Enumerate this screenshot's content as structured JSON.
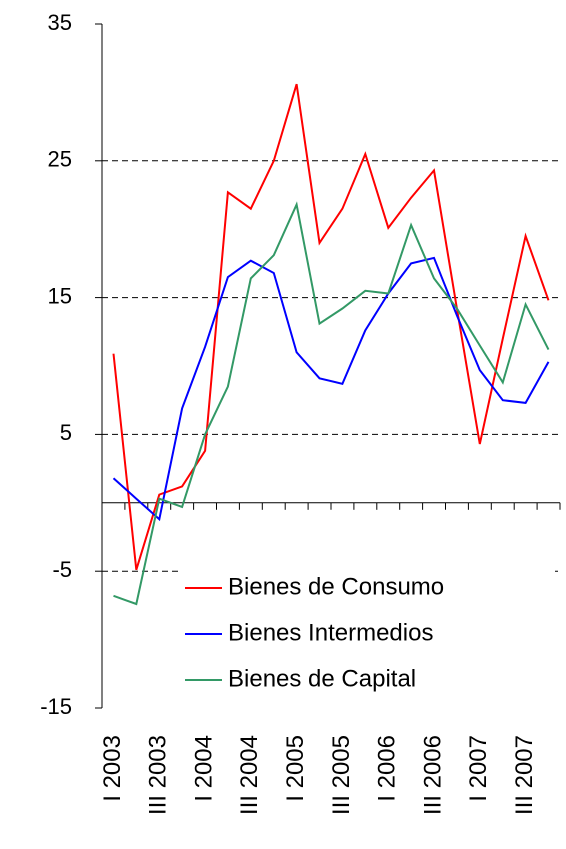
{
  "chart_data": {
    "type": "line",
    "categories": [
      "I 2003",
      null,
      "III 2003",
      null,
      "I 2004",
      null,
      "III 2004",
      null,
      "I 2005",
      null,
      "III 2005",
      null,
      "I 2006",
      null,
      "III 2006",
      null,
      "I 2007",
      null,
      "III 2007",
      null
    ],
    "series": [
      {
        "name": "Bienes de Consumo",
        "color": "#ff0000",
        "values": [
          10.9,
          -4.9,
          0.6,
          1.2,
          3.8,
          22.7,
          21.5,
          25.0,
          30.6,
          19.0,
          21.5,
          25.5,
          20.1,
          22.3,
          24.3,
          14.2,
          4.3,
          12.0,
          19.5,
          14.8
        ]
      },
      {
        "name": "Bienes Intermedios",
        "color": "#0000ff",
        "values": [
          1.8,
          0.3,
          -1.2,
          6.9,
          11.4,
          16.5,
          17.7,
          16.8,
          11.0,
          9.1,
          8.7,
          12.6,
          15.3,
          17.5,
          17.9,
          13.7,
          9.7,
          7.5,
          7.3,
          10.3
        ]
      },
      {
        "name": "Bienes de Capital",
        "color": "#339966",
        "values": [
          -6.8,
          -7.4,
          0.3,
          -0.3,
          5.0,
          8.5,
          16.4,
          18.1,
          21.8,
          13.1,
          14.2,
          15.5,
          15.3,
          20.3,
          16.4,
          14.2,
          11.5,
          8.8,
          14.5,
          11.2
        ]
      }
    ],
    "ylim": [
      -15,
      35
    ],
    "yticks": [
      -15,
      -5,
      5,
      15,
      25,
      35
    ],
    "grid": true
  }
}
